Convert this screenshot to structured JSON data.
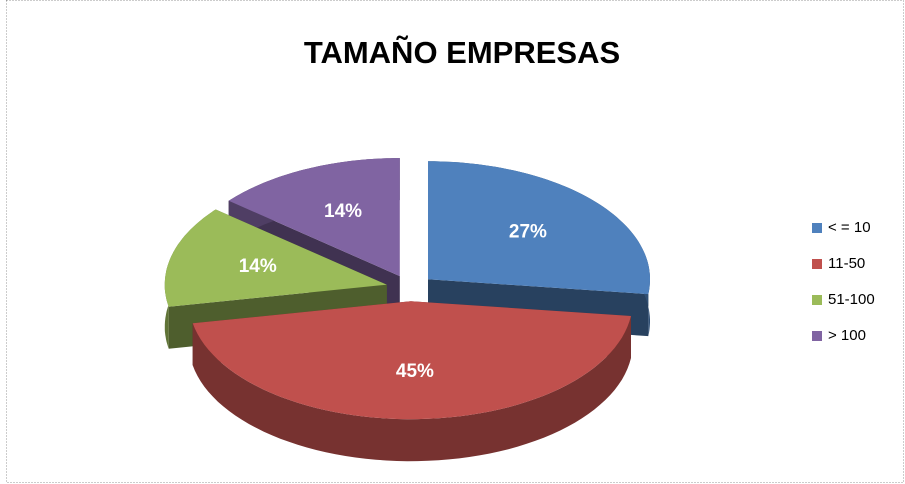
{
  "chart_data": {
    "type": "pie3d",
    "title": "TAMAÑO EMPRESAS",
    "categories": [
      "< = 10",
      "11-50",
      "51-100",
      "> 100"
    ],
    "values": [
      27,
      45,
      14,
      14
    ],
    "value_labels": [
      "27%",
      "45%",
      "14%",
      "14%"
    ],
    "colors": [
      "#4f81bd",
      "#c0504d",
      "#9bbb59",
      "#8064a2"
    ],
    "legend": "right"
  }
}
